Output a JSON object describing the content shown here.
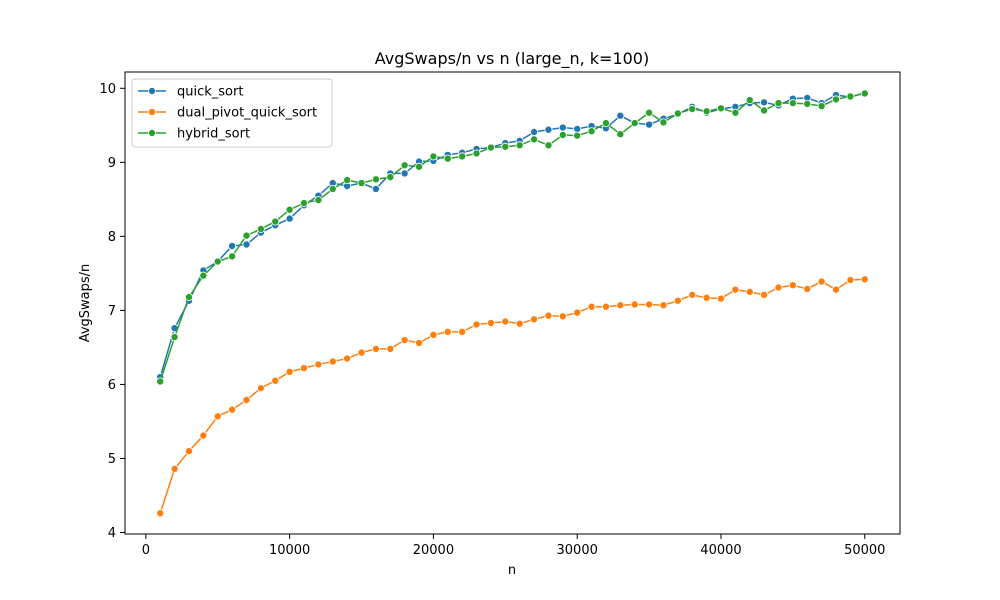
{
  "chart_data": {
    "type": "line",
    "title": "AvgSwaps/n vs n (large_n, k=100)",
    "xlabel": "n",
    "ylabel": "AvgSwaps/n",
    "xlim": [
      -1450,
      52450
    ],
    "ylim": [
      3.98,
      10.22
    ],
    "xticks": [
      0,
      10000,
      20000,
      30000,
      40000,
      50000
    ],
    "yticks": [
      4,
      5,
      6,
      7,
      8,
      9,
      10
    ],
    "legend": "top-left",
    "grid": false,
    "x": [
      1000,
      2000,
      3000,
      4000,
      5000,
      6000,
      7000,
      8000,
      9000,
      10000,
      11000,
      12000,
      13000,
      14000,
      15000,
      16000,
      17000,
      18000,
      19000,
      20000,
      21000,
      22000,
      23000,
      24000,
      25000,
      26000,
      27000,
      28000,
      29000,
      30000,
      31000,
      32000,
      33000,
      34000,
      35000,
      36000,
      37000,
      38000,
      39000,
      40000,
      41000,
      42000,
      43000,
      44000,
      45000,
      46000,
      47000,
      48000,
      49000,
      50000
    ],
    "series": [
      {
        "name": "quick_sort",
        "color": "#1f77b4",
        "values": [
          6.1,
          6.76,
          7.13,
          7.54,
          7.66,
          7.87,
          7.89,
          8.05,
          8.15,
          8.24,
          8.42,
          8.55,
          8.72,
          8.68,
          8.72,
          8.64,
          8.85,
          8.85,
          9.01,
          9.02,
          9.1,
          9.13,
          9.18,
          9.2,
          9.26,
          9.29,
          9.41,
          9.44,
          9.47,
          9.45,
          9.49,
          9.46,
          9.63,
          9.53,
          9.51,
          9.59,
          9.65,
          9.75,
          9.67,
          9.72,
          9.75,
          9.8,
          9.81,
          9.77,
          9.86,
          9.87,
          9.8,
          9.91,
          9.88,
          9.94
        ]
      },
      {
        "name": "dual_pivot_quick_sort",
        "color": "#ff7f0e",
        "values": [
          4.26,
          4.86,
          5.1,
          5.31,
          5.57,
          5.66,
          5.79,
          5.95,
          6.05,
          6.17,
          6.22,
          6.27,
          6.31,
          6.35,
          6.43,
          6.48,
          6.48,
          6.6,
          6.56,
          6.67,
          6.71,
          6.71,
          6.81,
          6.83,
          6.85,
          6.82,
          6.88,
          6.93,
          6.92,
          6.97,
          7.05,
          7.05,
          7.07,
          7.08,
          7.08,
          7.07,
          7.13,
          7.21,
          7.17,
          7.16,
          7.28,
          7.25,
          7.21,
          7.31,
          7.34,
          7.29,
          7.39,
          7.28,
          7.41,
          7.42
        ]
      },
      {
        "name": "hybrid_sort",
        "color": "#2ca02c",
        "values": [
          6.04,
          6.64,
          7.18,
          7.47,
          7.66,
          7.73,
          8.01,
          8.1,
          8.2,
          8.36,
          8.45,
          8.49,
          8.64,
          8.76,
          8.72,
          8.77,
          8.8,
          8.96,
          8.94,
          9.08,
          9.05,
          9.08,
          9.12,
          9.2,
          9.21,
          9.23,
          9.31,
          9.23,
          9.37,
          9.36,
          9.42,
          9.53,
          9.38,
          9.53,
          9.67,
          9.54,
          9.66,
          9.72,
          9.69,
          9.73,
          9.67,
          9.84,
          9.7,
          9.8,
          9.8,
          9.79,
          9.76,
          9.85,
          9.89,
          9.93
        ]
      }
    ]
  }
}
